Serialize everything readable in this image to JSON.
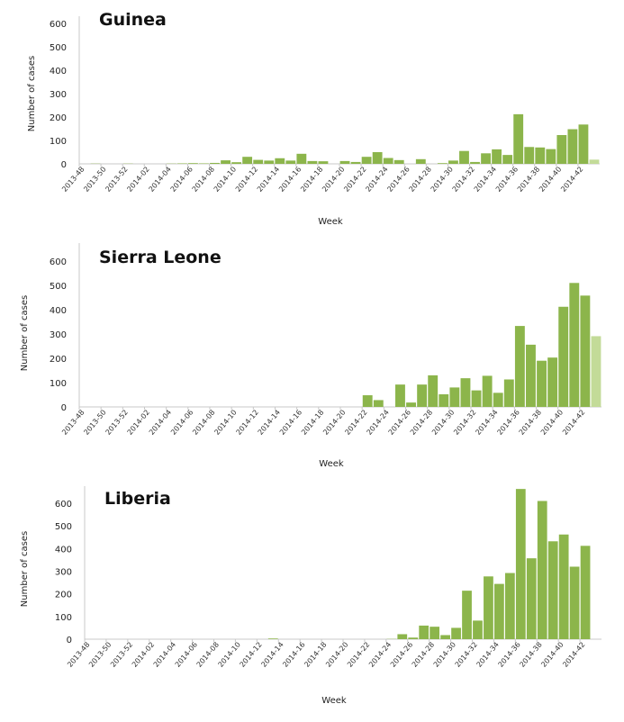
{
  "chart_data": [
    {
      "type": "bar",
      "title": "Guinea",
      "xlabel": "Week",
      "ylabel": "Number of cases",
      "ylim": [
        0,
        600
      ],
      "yticks": [
        0,
        100,
        200,
        300,
        400,
        500,
        600
      ],
      "categories": [
        "2013-48",
        "2013-49",
        "2013-50",
        "2013-51",
        "2013-52",
        "2014-01",
        "2014-02",
        "2014-03",
        "2014-04",
        "2014-05",
        "2014-06",
        "2014-07",
        "2014-08",
        "2014-09",
        "2014-10",
        "2014-11",
        "2014-12",
        "2014-13",
        "2014-14",
        "2014-15",
        "2014-16",
        "2014-17",
        "2014-18",
        "2014-19",
        "2014-20",
        "2014-21",
        "2014-22",
        "2014-23",
        "2014-24",
        "2014-25",
        "2014-26",
        "2014-27",
        "2014-28",
        "2014-29",
        "2014-30",
        "2014-31",
        "2014-32",
        "2014-33",
        "2014-34",
        "2014-35",
        "2014-36",
        "2014-37",
        "2014-38",
        "2014-39",
        "2014-40",
        "2014-41",
        "2014-42",
        "2014-43"
      ],
      "values": [
        0,
        1,
        0,
        0,
        1,
        0,
        0,
        0,
        1,
        2,
        3,
        2,
        4,
        15,
        7,
        30,
        17,
        14,
        24,
        14,
        43,
        12,
        11,
        0,
        12,
        8,
        30,
        50,
        25,
        16,
        0,
        20,
        0,
        3,
        14,
        55,
        8,
        45,
        62,
        38,
        212,
        72,
        70,
        63,
        123,
        148,
        168,
        18
      ],
      "incomplete_last": true
    },
    {
      "type": "bar",
      "title": "Sierra Leone",
      "xlabel": "Week",
      "ylabel": "Number of cases",
      "ylim": [
        0,
        650
      ],
      "yticks": [
        0,
        100,
        200,
        300,
        400,
        500,
        600
      ],
      "categories": [
        "2013-48",
        "2013-49",
        "2013-50",
        "2013-51",
        "2013-52",
        "2014-01",
        "2014-02",
        "2014-03",
        "2014-04",
        "2014-05",
        "2014-06",
        "2014-07",
        "2014-08",
        "2014-09",
        "2014-10",
        "2014-11",
        "2014-12",
        "2014-13",
        "2014-14",
        "2014-15",
        "2014-16",
        "2014-17",
        "2014-18",
        "2014-19",
        "2014-20",
        "2014-21",
        "2014-22",
        "2014-23",
        "2014-24",
        "2014-25",
        "2014-26",
        "2014-27",
        "2014-28",
        "2014-29",
        "2014-30",
        "2014-31",
        "2014-32",
        "2014-33",
        "2014-34",
        "2014-35",
        "2014-36",
        "2014-37",
        "2014-38",
        "2014-39",
        "2014-40",
        "2014-41",
        "2014-42",
        "2014-43"
      ],
      "values": [
        0,
        0,
        0,
        0,
        0,
        0,
        0,
        0,
        0,
        0,
        0,
        0,
        0,
        0,
        0,
        0,
        0,
        0,
        0,
        0,
        0,
        0,
        0,
        0,
        0,
        0,
        48,
        28,
        0,
        92,
        18,
        92,
        130,
        52,
        80,
        118,
        68,
        128,
        58,
        113,
        333,
        256,
        190,
        203,
        412,
        510,
        458,
        291
      ],
      "incomplete_last": true
    },
    {
      "type": "bar",
      "title": "Liberia",
      "xlabel": "Week",
      "ylabel": "Number of cases",
      "ylim": [
        0,
        670
      ],
      "yticks": [
        0,
        100,
        200,
        300,
        400,
        500,
        600
      ],
      "categories": [
        "2013-48",
        "2013-49",
        "2013-50",
        "2013-51",
        "2013-52",
        "2014-01",
        "2014-02",
        "2014-03",
        "2014-04",
        "2014-05",
        "2014-06",
        "2014-07",
        "2014-08",
        "2014-09",
        "2014-10",
        "2014-11",
        "2014-12",
        "2014-13",
        "2014-14",
        "2014-15",
        "2014-16",
        "2014-17",
        "2014-18",
        "2014-19",
        "2014-20",
        "2014-21",
        "2014-22",
        "2014-23",
        "2014-24",
        "2014-25",
        "2014-26",
        "2014-27",
        "2014-28",
        "2014-29",
        "2014-30",
        "2014-31",
        "2014-32",
        "2014-33",
        "2014-34",
        "2014-35",
        "2014-36",
        "2014-37",
        "2014-38",
        "2014-39",
        "2014-40",
        "2014-41",
        "2014-42",
        "2014-43"
      ],
      "values": [
        0,
        0,
        0,
        0,
        0,
        0,
        0,
        0,
        0,
        0,
        0,
        0,
        0,
        0,
        0,
        0,
        0,
        3,
        0,
        0,
        0,
        0,
        0,
        0,
        0,
        0,
        0,
        0,
        1,
        22,
        7,
        60,
        55,
        18,
        50,
        214,
        82,
        277,
        244,
        292,
        663,
        357,
        610,
        432,
        462,
        320,
        412,
        null
      ],
      "incomplete_last": false
    }
  ],
  "colors": {
    "bar": "#8cb54b",
    "incomplete": "#c3db98",
    "axis": "#c8c8c8"
  }
}
